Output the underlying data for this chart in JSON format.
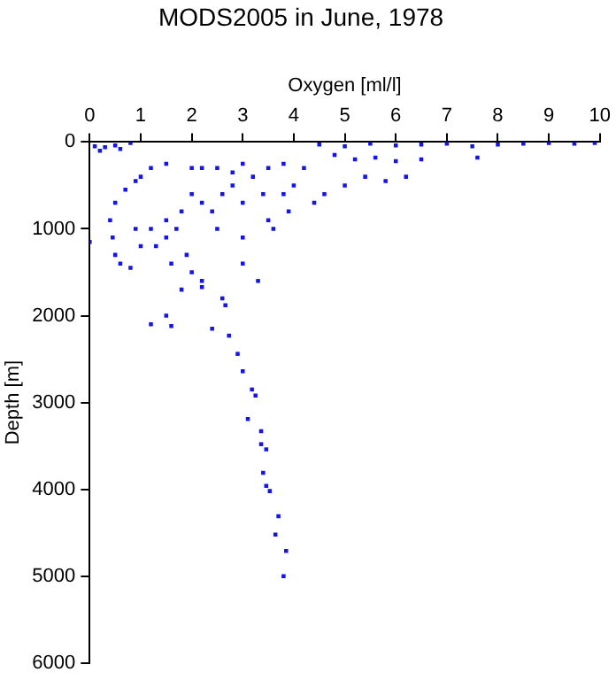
{
  "chart_data": {
    "type": "scatter",
    "title": "MODS2005 in June, 1978",
    "xlabel": "Oxygen [ml/l]",
    "ylabel": "Depth [m]",
    "xlim": [
      0,
      10
    ],
    "ylim": [
      6000,
      0
    ],
    "xticks": [
      0,
      1,
      2,
      3,
      4,
      5,
      6,
      7,
      8,
      9,
      10
    ],
    "yticks": [
      0,
      1000,
      2000,
      3000,
      4000,
      5000,
      6000
    ],
    "grid": false,
    "legend": false,
    "marker": "square",
    "series": [
      {
        "color": "#1414f0",
        "x": [
          0.1,
          0.2,
          0.3,
          0.5,
          0.6,
          0.8,
          4.5,
          5,
          5.5,
          6,
          6.5,
          7,
          7.5,
          8,
          8.5,
          9,
          9.5,
          9.9,
          4.8,
          5.2,
          5.6,
          6,
          6.5,
          7.6,
          6.2,
          5.8,
          5.4,
          5.0,
          4.6,
          4.4,
          4.2,
          3.8,
          3.5,
          3.0,
          3.2,
          2.8,
          2.5,
          2.2,
          2,
          1.5,
          1.2,
          1,
          0.9,
          0.7,
          0.5,
          0.4,
          0.45,
          0.5,
          0.6,
          0.8,
          1.0,
          1.2,
          1.5,
          1.5,
          1.8,
          1.7,
          2.0,
          2.2,
          2.4,
          2.6,
          2.8,
          3.0,
          3.4,
          3.8,
          4.0,
          3.9,
          3.5,
          3.6,
          3.0,
          2.5,
          1.9,
          2.0,
          2.2,
          1.8,
          2.6,
          3.0,
          3.3,
          1.3,
          1.6,
          0.9,
          0.0,
          1.2,
          1.5,
          2.2,
          2.66,
          1.6,
          2.73,
          2.9,
          3.0,
          3.25,
          3.1,
          3.36,
          3.46,
          3.4,
          3.53,
          3.7,
          3.64,
          3.85,
          3.8,
          2.4,
          3.18,
          3.36,
          3.46
        ],
        "values": [
          50,
          100,
          60,
          40,
          80,
          10,
          30,
          50,
          20,
          40,
          30,
          20,
          50,
          30,
          20,
          10,
          20,
          10,
          150,
          200,
          180,
          220,
          200,
          180,
          400,
          450,
          400,
          500,
          600,
          700,
          300,
          250,
          300,
          250,
          400,
          350,
          300,
          300,
          300,
          250,
          300,
          400,
          450,
          550,
          700,
          900,
          1100,
          1300,
          1400,
          1450,
          1200,
          1000,
          900,
          1100,
          800,
          1000,
          600,
          700,
          800,
          600,
          500,
          700,
          600,
          600,
          500,
          800,
          900,
          1000,
          1100,
          1000,
          1300,
          1500,
          1600,
          1700,
          1800,
          1400,
          1600,
          1200,
          1400,
          1000,
          1150,
          2100,
          2000,
          1670,
          1880,
          2120,
          2230,
          2440,
          2640,
          2920,
          3190,
          3330,
          3540,
          3810,
          4020,
          4310,
          4520,
          4710,
          5000,
          2150,
          2850,
          3480,
          3960
        ]
      }
    ]
  }
}
